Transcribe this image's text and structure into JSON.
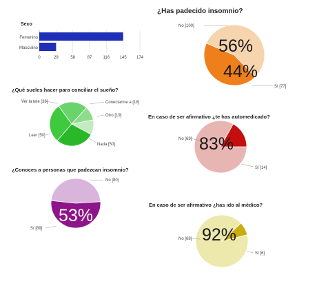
{
  "charts": [
    {
      "id": "sexo",
      "chart_data": {
        "type": "bar",
        "orientation": "horizontal",
        "title": "Sexo",
        "categories": [
          "Femenino",
          "Masculino"
        ],
        "values": [
          145,
          29
        ],
        "xlim": [
          0,
          174
        ],
        "ticks": [
          "0",
          "29",
          "58",
          "87",
          "116",
          "145",
          "174"
        ],
        "color": "#1f2fb8"
      }
    },
    {
      "id": "insomnio",
      "chart_data": {
        "type": "pie",
        "title": "¿Has padecido insomnio?",
        "slices": [
          {
            "name": "No",
            "value": 100,
            "label": "No [100]",
            "color": "#f6d4ad"
          },
          {
            "name": "Sí",
            "value": 77,
            "label": "Sí [77]",
            "color": "#ef7f1a"
          }
        ],
        "big_labels": [
          "56%",
          "44%"
        ]
      }
    },
    {
      "id": "conciliar",
      "chart_data": {
        "type": "pie",
        "title": "¿Qué sueles hacer para conciliar el sueño?",
        "slices": [
          {
            "name": "Ver la tele",
            "value": 38,
            "label": "Ver la tele [38]",
            "color": "#6bd36b"
          },
          {
            "name": "Conectarme a",
            "value": 18,
            "label": "Conectarme a [18]",
            "color": "#8fdc8f"
          },
          {
            "name": "Otro",
            "value": 19,
            "label": "Otro [19]",
            "color": "#c2ecbf"
          },
          {
            "name": "Nada",
            "value": 50,
            "label": "Nada [50]",
            "color": "#2ab82a"
          },
          {
            "name": "Leer",
            "value": 50,
            "label": "Leer [50]",
            "color": "#3ec93e"
          }
        ]
      }
    },
    {
      "id": "automedicado",
      "chart_data": {
        "type": "pie",
        "title": "En caso de ser afirmativo ¿te has automedicado?",
        "slices": [
          {
            "name": "No",
            "value": 69,
            "label": "No [69]",
            "color": "#e7b6b3"
          },
          {
            "name": "Sí",
            "value": 14,
            "label": "Sí [14]",
            "color": "#c50f0f"
          }
        ],
        "big_labels": [
          "83%"
        ]
      }
    },
    {
      "id": "conoces",
      "chart_data": {
        "type": "pie",
        "title": "¿Conoces a personas que padezcan insomnio?",
        "slices": [
          {
            "name": "No",
            "value": 80,
            "label": "No [80]",
            "color": "#d9b5dc"
          },
          {
            "name": "Sí",
            "value": 89,
            "label": "Sí [89]",
            "color": "#8e148a"
          }
        ],
        "big_labels": [
          "53%"
        ]
      }
    },
    {
      "id": "medico",
      "chart_data": {
        "type": "pie",
        "title": "En caso de ser afirmativo ¿has ido al médico?",
        "slices": [
          {
            "name": "No",
            "value": 68,
            "label": "No [68]",
            "color": "#ede9ad"
          },
          {
            "name": "Sí",
            "value": 6,
            "label": "Sí [6]",
            "color": "#c9ac0e"
          }
        ],
        "big_labels": [
          "92%"
        ]
      }
    }
  ]
}
